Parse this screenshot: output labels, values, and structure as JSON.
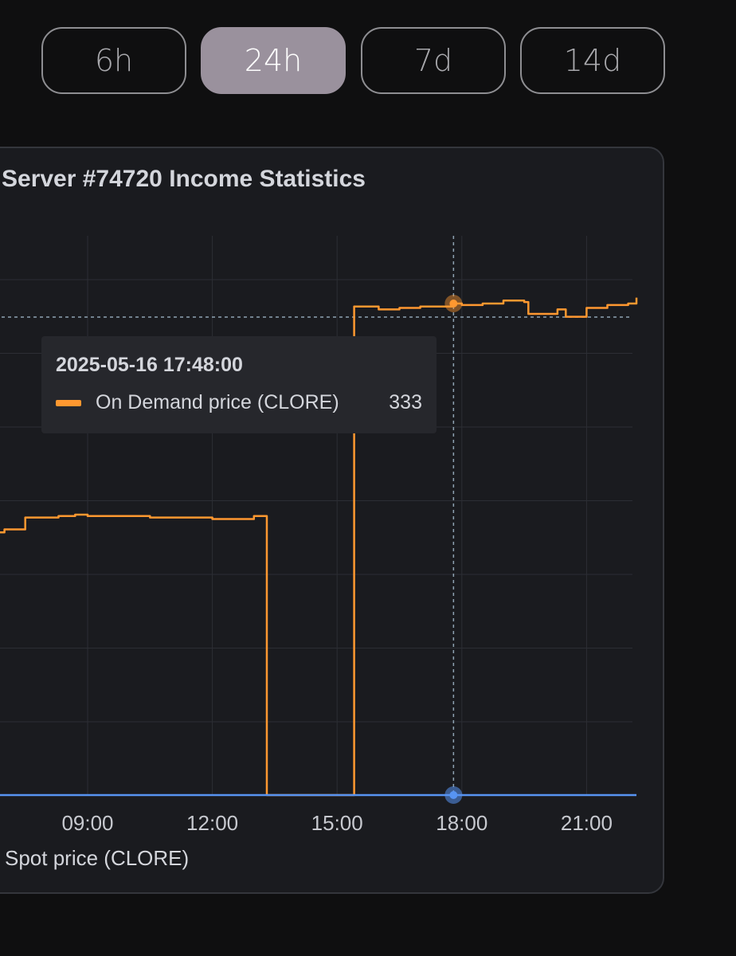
{
  "period_tabs": [
    {
      "label": "6h",
      "active": false
    },
    {
      "label": "24h",
      "active": true
    },
    {
      "label": "7d",
      "active": false
    },
    {
      "label": "14d",
      "active": false
    }
  ],
  "chart_title": "Server #74720 Income Statistics",
  "tooltip": {
    "time": "2025-05-16 17:48:00",
    "series_name": "On Demand price (CLORE)",
    "value": "333"
  },
  "legend": {
    "series": [
      {
        "name": "Spot price (CLORE)",
        "color": "#5794f2"
      }
    ]
  },
  "colors": {
    "orange": "#ff9830",
    "blue": "#5794f2",
    "grid": "#2c2e34",
    "crosshair": "#8fa3b3"
  },
  "chart_data": {
    "type": "line",
    "title": "Server #74720 Income Statistics",
    "x_ticks": [
      "09:00",
      "12:00",
      "15:00",
      "18:00",
      "21:00"
    ],
    "x_unit": "hour of day (2025-05-16)",
    "series": [
      {
        "name": "On Demand price (CLORE)",
        "color": "#ff9830",
        "step": true,
        "points": [
          [
            6.5,
            178
          ],
          [
            7.0,
            180
          ],
          [
            7.5,
            188
          ],
          [
            8.0,
            188
          ],
          [
            8.3,
            189
          ],
          [
            8.7,
            190
          ],
          [
            9.0,
            189
          ],
          [
            9.5,
            189
          ],
          [
            10.0,
            189
          ],
          [
            10.5,
            188
          ],
          [
            11.0,
            188
          ],
          [
            11.5,
            188
          ],
          [
            12.0,
            187
          ],
          [
            12.5,
            187
          ],
          [
            13.0,
            189
          ],
          [
            13.3,
            189
          ],
          [
            13.31,
            0
          ],
          [
            15.4,
            0
          ],
          [
            15.41,
            331
          ],
          [
            16.0,
            329
          ],
          [
            16.5,
            330
          ],
          [
            17.0,
            331
          ],
          [
            17.5,
            331
          ],
          [
            17.8,
            333
          ],
          [
            18.0,
            332
          ],
          [
            18.5,
            333
          ],
          [
            19.0,
            335
          ],
          [
            19.5,
            334
          ],
          [
            19.6,
            326
          ],
          [
            20.0,
            326
          ],
          [
            20.3,
            329
          ],
          [
            20.5,
            324
          ],
          [
            21.0,
            330
          ],
          [
            21.5,
            332
          ],
          [
            22.0,
            333
          ],
          [
            22.2,
            337
          ]
        ]
      },
      {
        "name": "Spot price (CLORE)",
        "color": "#5794f2",
        "points": [
          [
            6.5,
            0
          ],
          [
            22.2,
            0
          ]
        ]
      }
    ],
    "crosshair": {
      "x": 17.8,
      "y_label": "333"
    }
  }
}
